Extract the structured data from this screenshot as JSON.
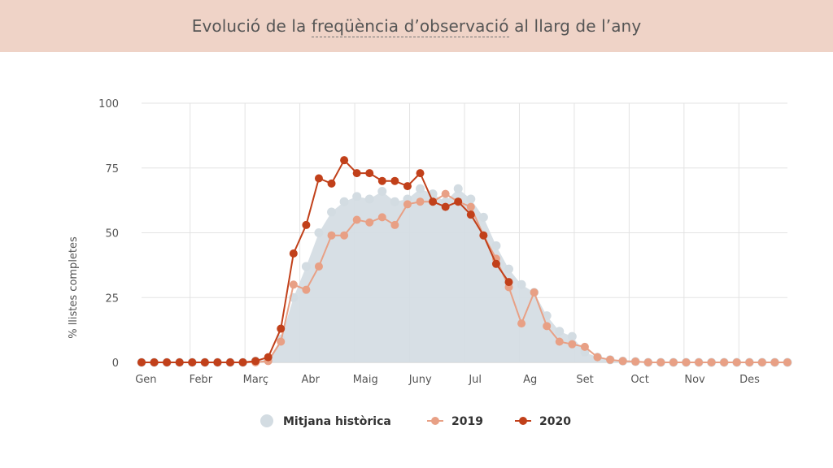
{
  "header": {
    "title_pre": "Evolució de la ",
    "title_link": "freqüència d’observació",
    "title_post": " al llarg de l’any"
  },
  "chart_data": {
    "type": "line",
    "ylabel": "% llistes completes",
    "ylim": [
      0,
      100
    ],
    "yticks": [
      0,
      25,
      50,
      75,
      100
    ],
    "month_labels": [
      "Gen",
      "Febr",
      "Març",
      "Abr",
      "Maig",
      "Juny",
      "Jul",
      "Ag",
      "Set",
      "Oct",
      "Nov",
      "Des"
    ],
    "grid": true,
    "legend_position": "bottom",
    "series": [
      {
        "name": "Mitjana històrica",
        "type": "area",
        "color": "#d3dce2",
        "values": [
          0,
          0,
          0,
          0,
          0,
          0,
          0,
          0,
          0,
          0.5,
          1,
          9,
          25,
          37,
          50,
          58,
          62,
          64,
          63,
          66,
          62,
          63,
          67,
          65,
          62,
          67,
          63,
          56,
          45,
          36,
          30,
          27,
          18,
          12,
          10,
          4,
          2,
          1,
          0.5,
          0.3,
          0,
          0,
          0,
          0,
          0,
          0,
          0,
          0,
          0,
          0,
          0,
          0
        ]
      },
      {
        "name": "2019",
        "type": "line",
        "color": "#e8a085",
        "values": [
          0,
          0,
          0,
          0,
          0,
          0,
          0,
          0,
          0,
          0,
          0.5,
          8,
          30,
          28,
          37,
          49,
          49,
          55,
          54,
          56,
          53,
          61,
          62,
          62,
          65,
          62,
          60,
          49,
          40,
          29,
          15,
          27,
          14,
          8,
          7,
          6,
          2,
          1,
          0.5,
          0.3,
          0,
          0,
          0,
          0,
          0,
          0,
          0,
          0,
          0,
          0,
          0,
          0
        ]
      },
      {
        "name": "2020",
        "type": "line",
        "color": "#c1401a",
        "values": [
          0,
          0,
          0,
          0,
          0,
          0,
          0,
          0,
          0,
          0.5,
          2,
          13,
          42,
          53,
          71,
          69,
          78,
          73,
          73,
          70,
          70,
          68,
          73,
          62,
          60,
          62,
          57,
          49,
          38,
          31
        ]
      }
    ]
  }
}
